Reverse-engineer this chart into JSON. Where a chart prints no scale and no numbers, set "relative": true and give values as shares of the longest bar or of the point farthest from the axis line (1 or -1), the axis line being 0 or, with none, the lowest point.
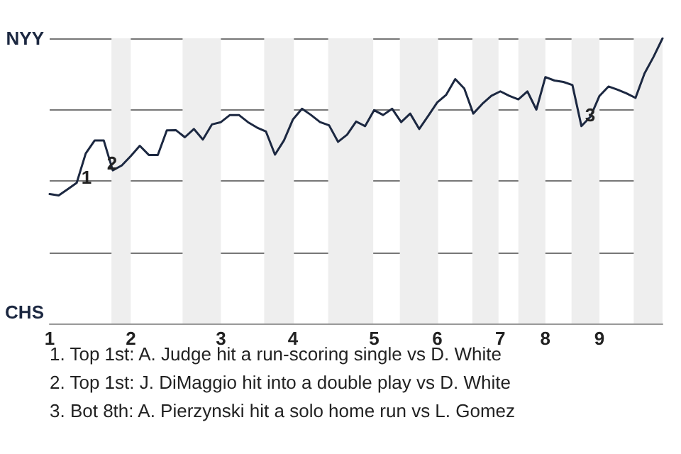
{
  "chart_data": {
    "type": "line",
    "relative": true,
    "categories": [
      "1",
      null,
      null,
      null,
      null,
      null,
      null,
      null,
      null,
      "2",
      null,
      null,
      null,
      null,
      null,
      null,
      null,
      null,
      null,
      "3",
      null,
      null,
      null,
      null,
      null,
      null,
      null,
      "4",
      null,
      null,
      null,
      null,
      null,
      null,
      null,
      null,
      "5",
      null,
      null,
      null,
      null,
      null,
      null,
      "6",
      null,
      null,
      null,
      null,
      null,
      null,
      "7",
      null,
      null,
      null,
      null,
      "8",
      null,
      null,
      null,
      null,
      null,
      "9",
      null,
      null,
      null,
      null,
      null,
      null,
      null
    ],
    "series": [
      {
        "color": "#1c2841",
        "values": [
          0.454,
          0.449,
          0.471,
          0.493,
          0.596,
          0.642,
          0.642,
          0.537,
          0.554,
          0.587,
          0.623,
          0.591,
          0.591,
          0.677,
          0.678,
          0.653,
          0.682,
          0.645,
          0.698,
          0.706,
          0.731,
          0.731,
          0.706,
          0.687,
          0.673,
          0.592,
          0.642,
          0.716,
          0.753,
          0.731,
          0.706,
          0.695,
          0.637,
          0.662,
          0.708,
          0.692,
          0.748,
          0.731,
          0.753,
          0.706,
          0.736,
          0.682,
          0.728,
          0.775,
          0.802,
          0.857,
          0.824,
          0.736,
          0.77,
          0.798,
          0.814,
          0.798,
          0.786,
          0.814,
          0.75,
          0.864,
          0.852,
          0.847,
          0.836,
          0.692,
          0.725,
          0.798,
          0.831,
          0.82,
          0.807,
          0.791,
          0.877,
          0.935,
          1
        ]
      }
    ],
    "grid": "y",
    "marker": "none",
    "line_style": "solid",
    "annotations": [
      "NYY",
      "CHS",
      "1",
      "2",
      "3",
      "1. Top 1st: A. Judge hit a run-scoring single vs D. White",
      "2. Top 1st: J. DiMaggio hit into a double play vs D. White",
      "3. Bot 8th: A. Pierzynski hit a solo home run vs L. Gomez"
    ]
  }
}
